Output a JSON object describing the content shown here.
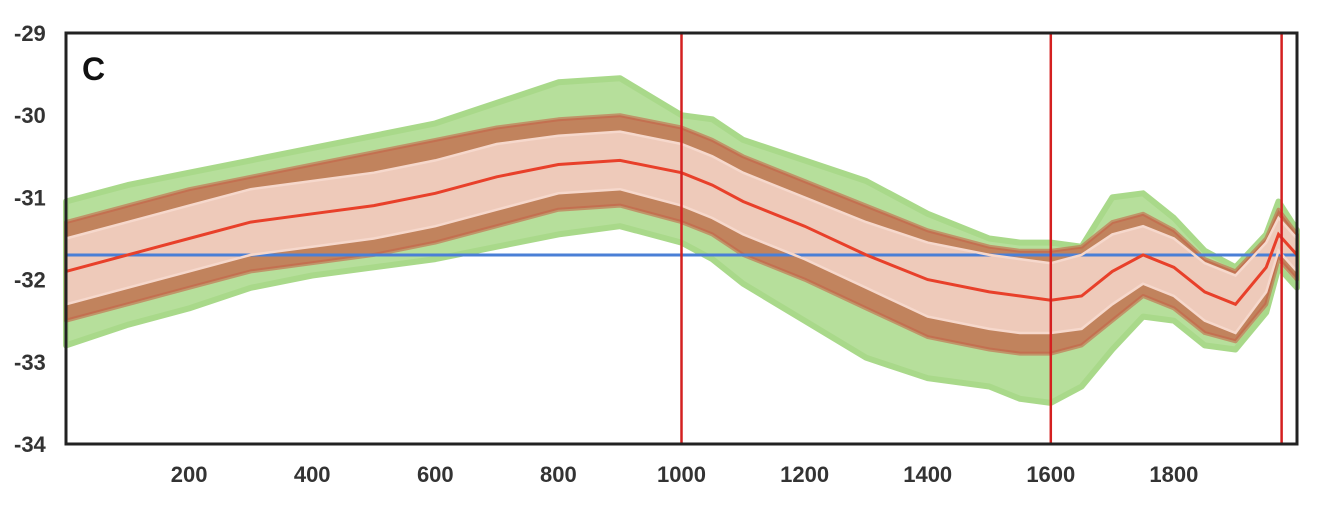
{
  "chart_data": {
    "type": "line",
    "panel_label": "C",
    "xlim": [
      0,
      2000
    ],
    "ylim": [
      -34,
      -29
    ],
    "x_ticks": [
      200,
      400,
      600,
      800,
      1000,
      1200,
      1400,
      1600,
      1800
    ],
    "y_ticks": [
      -29,
      -30,
      -31,
      -32,
      -33,
      -34
    ],
    "grid": false,
    "reference_line": {
      "y": -31.7,
      "color": "#4a7fd6"
    },
    "vertical_lines": [
      {
        "x": 1000,
        "color": "#d42020"
      },
      {
        "x": 1600,
        "color": "#d42020"
      },
      {
        "x": 1975,
        "color": "#d42020"
      }
    ],
    "x": [
      0,
      100,
      200,
      300,
      400,
      500,
      600,
      700,
      800,
      900,
      1000,
      1050,
      1100,
      1200,
      1300,
      1400,
      1500,
      1550,
      1600,
      1650,
      1700,
      1750,
      1800,
      1850,
      1900,
      1950,
      1970,
      2000
    ],
    "series": [
      {
        "role": "mean",
        "color": "#e8402a",
        "values": [
          -31.9,
          -31.7,
          -31.5,
          -31.3,
          -31.2,
          -31.1,
          -30.95,
          -30.75,
          -30.6,
          -30.55,
          -30.7,
          -30.85,
          -31.05,
          -31.35,
          -31.7,
          -32.0,
          -32.15,
          -32.2,
          -32.25,
          -32.2,
          -31.9,
          -31.7,
          -31.85,
          -32.15,
          -32.3,
          -31.85,
          -31.45,
          -31.7
        ]
      },
      {
        "role": "upper-bound",
        "color": "#f6d8cc",
        "values": [
          -31.5,
          -31.3,
          -31.1,
          -30.9,
          -30.8,
          -30.7,
          -30.55,
          -30.35,
          -30.25,
          -30.2,
          -30.35,
          -30.5,
          -30.7,
          -31.0,
          -31.3,
          -31.55,
          -31.7,
          -31.75,
          -31.8,
          -31.7,
          -31.45,
          -31.35,
          -31.5,
          -31.8,
          -31.95,
          -31.55,
          -31.25,
          -31.5
        ]
      },
      {
        "role": "lower-bound",
        "color": "#f6d8cc",
        "values": [
          -32.3,
          -32.1,
          -31.9,
          -31.7,
          -31.6,
          -31.5,
          -31.35,
          -31.15,
          -30.95,
          -30.9,
          -31.1,
          -31.25,
          -31.45,
          -31.75,
          -32.1,
          -32.45,
          -32.6,
          -32.65,
          -32.65,
          -32.6,
          -32.3,
          -32.05,
          -32.2,
          -32.5,
          -32.65,
          -32.15,
          -31.65,
          -31.9
        ]
      }
    ],
    "envelope_green": {
      "color": "#a9d98a",
      "upper": [
        -31.05,
        -30.85,
        -30.7,
        -30.55,
        -30.4,
        -30.25,
        -30.1,
        -29.85,
        -29.6,
        -29.55,
        -30.0,
        -30.05,
        -30.3,
        -30.55,
        -30.8,
        -31.2,
        -31.5,
        -31.55,
        -31.55,
        -31.6,
        -31.0,
        -30.95,
        -31.25,
        -31.65,
        -31.85,
        -31.45,
        -31.05,
        -31.4
      ],
      "lower": [
        -32.8,
        -32.55,
        -32.35,
        -32.1,
        -31.95,
        -31.85,
        -31.75,
        -31.6,
        -31.45,
        -31.35,
        -31.55,
        -31.75,
        -32.05,
        -32.5,
        -32.95,
        -33.2,
        -33.3,
        -33.45,
        -33.5,
        -33.3,
        -32.85,
        -32.45,
        -32.5,
        -32.8,
        -32.85,
        -32.4,
        -31.85,
        -32.1
      ]
    },
    "envelope_brown": {
      "color": "#c46448",
      "upper": [
        -31.3,
        -31.1,
        -30.9,
        -30.75,
        -30.6,
        -30.45,
        -30.3,
        -30.15,
        -30.05,
        -30.0,
        -30.15,
        -30.3,
        -30.5,
        -30.8,
        -31.1,
        -31.4,
        -31.6,
        -31.65,
        -31.65,
        -31.6,
        -31.3,
        -31.2,
        -31.4,
        -31.75,
        -31.9,
        -31.5,
        -31.15,
        -31.45
      ],
      "lower": [
        -32.5,
        -32.3,
        -32.1,
        -31.9,
        -31.8,
        -31.7,
        -31.55,
        -31.35,
        -31.15,
        -31.1,
        -31.3,
        -31.45,
        -31.7,
        -32.0,
        -32.35,
        -32.7,
        -32.85,
        -32.9,
        -32.9,
        -32.8,
        -32.5,
        -32.2,
        -32.35,
        -32.65,
        -32.75,
        -32.3,
        -31.75,
        -32.0
      ]
    }
  }
}
